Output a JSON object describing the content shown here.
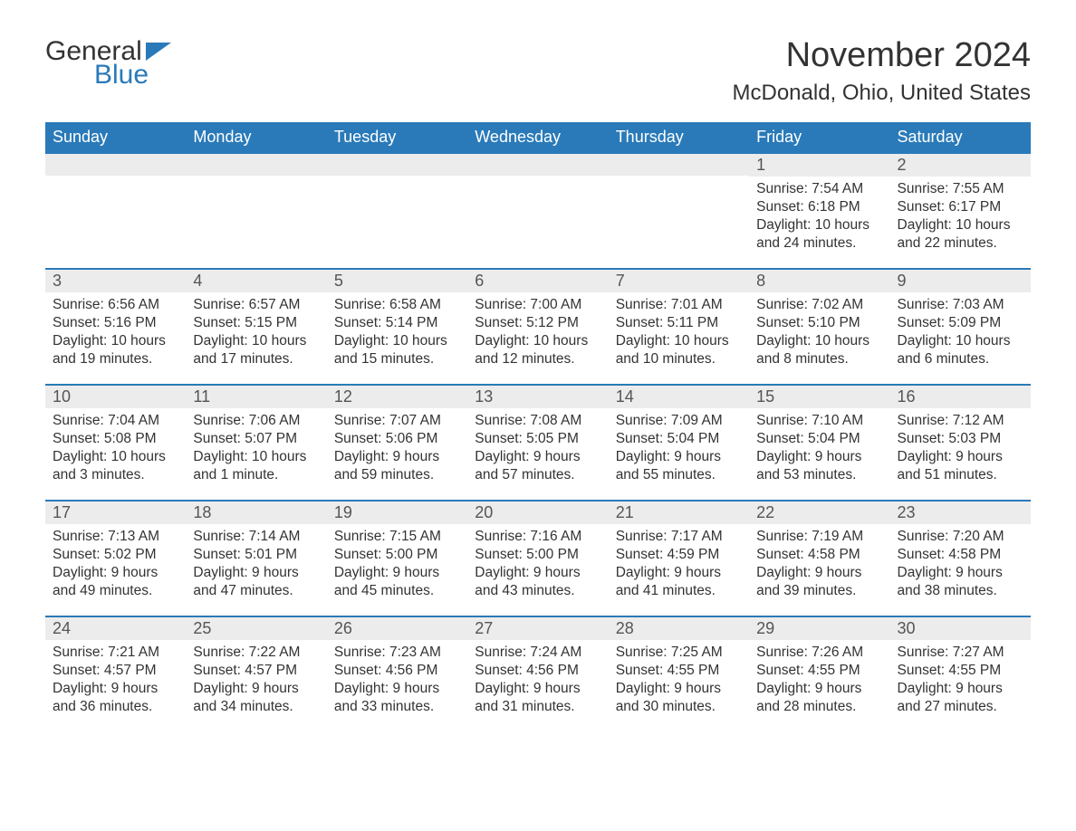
{
  "logo": {
    "word1": "General",
    "word2": "Blue"
  },
  "title": "November 2024",
  "location": "McDonald, Ohio, United States",
  "colors": {
    "header_bg": "#2a7ab9",
    "header_text": "#ffffff",
    "daynum_bg": "#ececec",
    "text": "#333333",
    "background": "#ffffff"
  },
  "weekdays": [
    "Sunday",
    "Monday",
    "Tuesday",
    "Wednesday",
    "Thursday",
    "Friday",
    "Saturday"
  ],
  "weeks": [
    [
      null,
      null,
      null,
      null,
      null,
      {
        "n": "1",
        "sr": "Sunrise: 7:54 AM",
        "ss": "Sunset: 6:18 PM",
        "dl": "Daylight: 10 hours and 24 minutes."
      },
      {
        "n": "2",
        "sr": "Sunrise: 7:55 AM",
        "ss": "Sunset: 6:17 PM",
        "dl": "Daylight: 10 hours and 22 minutes."
      }
    ],
    [
      {
        "n": "3",
        "sr": "Sunrise: 6:56 AM",
        "ss": "Sunset: 5:16 PM",
        "dl": "Daylight: 10 hours and 19 minutes."
      },
      {
        "n": "4",
        "sr": "Sunrise: 6:57 AM",
        "ss": "Sunset: 5:15 PM",
        "dl": "Daylight: 10 hours and 17 minutes."
      },
      {
        "n": "5",
        "sr": "Sunrise: 6:58 AM",
        "ss": "Sunset: 5:14 PM",
        "dl": "Daylight: 10 hours and 15 minutes."
      },
      {
        "n": "6",
        "sr": "Sunrise: 7:00 AM",
        "ss": "Sunset: 5:12 PM",
        "dl": "Daylight: 10 hours and 12 minutes."
      },
      {
        "n": "7",
        "sr": "Sunrise: 7:01 AM",
        "ss": "Sunset: 5:11 PM",
        "dl": "Daylight: 10 hours and 10 minutes."
      },
      {
        "n": "8",
        "sr": "Sunrise: 7:02 AM",
        "ss": "Sunset: 5:10 PM",
        "dl": "Daylight: 10 hours and 8 minutes."
      },
      {
        "n": "9",
        "sr": "Sunrise: 7:03 AM",
        "ss": "Sunset: 5:09 PM",
        "dl": "Daylight: 10 hours and 6 minutes."
      }
    ],
    [
      {
        "n": "10",
        "sr": "Sunrise: 7:04 AM",
        "ss": "Sunset: 5:08 PM",
        "dl": "Daylight: 10 hours and 3 minutes."
      },
      {
        "n": "11",
        "sr": "Sunrise: 7:06 AM",
        "ss": "Sunset: 5:07 PM",
        "dl": "Daylight: 10 hours and 1 minute."
      },
      {
        "n": "12",
        "sr": "Sunrise: 7:07 AM",
        "ss": "Sunset: 5:06 PM",
        "dl": "Daylight: 9 hours and 59 minutes."
      },
      {
        "n": "13",
        "sr": "Sunrise: 7:08 AM",
        "ss": "Sunset: 5:05 PM",
        "dl": "Daylight: 9 hours and 57 minutes."
      },
      {
        "n": "14",
        "sr": "Sunrise: 7:09 AM",
        "ss": "Sunset: 5:04 PM",
        "dl": "Daylight: 9 hours and 55 minutes."
      },
      {
        "n": "15",
        "sr": "Sunrise: 7:10 AM",
        "ss": "Sunset: 5:04 PM",
        "dl": "Daylight: 9 hours and 53 minutes."
      },
      {
        "n": "16",
        "sr": "Sunrise: 7:12 AM",
        "ss": "Sunset: 5:03 PM",
        "dl": "Daylight: 9 hours and 51 minutes."
      }
    ],
    [
      {
        "n": "17",
        "sr": "Sunrise: 7:13 AM",
        "ss": "Sunset: 5:02 PM",
        "dl": "Daylight: 9 hours and 49 minutes."
      },
      {
        "n": "18",
        "sr": "Sunrise: 7:14 AM",
        "ss": "Sunset: 5:01 PM",
        "dl": "Daylight: 9 hours and 47 minutes."
      },
      {
        "n": "19",
        "sr": "Sunrise: 7:15 AM",
        "ss": "Sunset: 5:00 PM",
        "dl": "Daylight: 9 hours and 45 minutes."
      },
      {
        "n": "20",
        "sr": "Sunrise: 7:16 AM",
        "ss": "Sunset: 5:00 PM",
        "dl": "Daylight: 9 hours and 43 minutes."
      },
      {
        "n": "21",
        "sr": "Sunrise: 7:17 AM",
        "ss": "Sunset: 4:59 PM",
        "dl": "Daylight: 9 hours and 41 minutes."
      },
      {
        "n": "22",
        "sr": "Sunrise: 7:19 AM",
        "ss": "Sunset: 4:58 PM",
        "dl": "Daylight: 9 hours and 39 minutes."
      },
      {
        "n": "23",
        "sr": "Sunrise: 7:20 AM",
        "ss": "Sunset: 4:58 PM",
        "dl": "Daylight: 9 hours and 38 minutes."
      }
    ],
    [
      {
        "n": "24",
        "sr": "Sunrise: 7:21 AM",
        "ss": "Sunset: 4:57 PM",
        "dl": "Daylight: 9 hours and 36 minutes."
      },
      {
        "n": "25",
        "sr": "Sunrise: 7:22 AM",
        "ss": "Sunset: 4:57 PM",
        "dl": "Daylight: 9 hours and 34 minutes."
      },
      {
        "n": "26",
        "sr": "Sunrise: 7:23 AM",
        "ss": "Sunset: 4:56 PM",
        "dl": "Daylight: 9 hours and 33 minutes."
      },
      {
        "n": "27",
        "sr": "Sunrise: 7:24 AM",
        "ss": "Sunset: 4:56 PM",
        "dl": "Daylight: 9 hours and 31 minutes."
      },
      {
        "n": "28",
        "sr": "Sunrise: 7:25 AM",
        "ss": "Sunset: 4:55 PM",
        "dl": "Daylight: 9 hours and 30 minutes."
      },
      {
        "n": "29",
        "sr": "Sunrise: 7:26 AM",
        "ss": "Sunset: 4:55 PM",
        "dl": "Daylight: 9 hours and 28 minutes."
      },
      {
        "n": "30",
        "sr": "Sunrise: 7:27 AM",
        "ss": "Sunset: 4:55 PM",
        "dl": "Daylight: 9 hours and 27 minutes."
      }
    ]
  ]
}
